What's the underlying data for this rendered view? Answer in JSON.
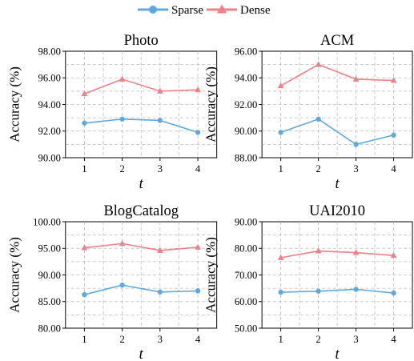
{
  "legend": {
    "items": [
      {
        "label": "Sparse",
        "color": "#5fa8df",
        "marker": "circle"
      },
      {
        "label": "Dense",
        "color": "#f07f86",
        "marker": "triangle"
      }
    ],
    "position": "top-center"
  },
  "chart_data": [
    {
      "type": "line",
      "title": "Photo",
      "xlabel": "t",
      "ylabel": "Accuracy (%)",
      "x": [
        1,
        2,
        3,
        4
      ],
      "xticks": [
        "1",
        "2",
        "3",
        "4"
      ],
      "ylim": [
        90,
        98
      ],
      "yticks": [
        "90.00",
        "92.00",
        "94.00",
        "96.00",
        "98.00"
      ],
      "grid": true,
      "series": [
        {
          "name": "Sparse",
          "values": [
            92.6,
            92.9,
            92.8,
            91.9
          ]
        },
        {
          "name": "Dense",
          "values": [
            94.8,
            95.9,
            95.0,
            95.1
          ]
        }
      ]
    },
    {
      "type": "line",
      "title": "ACM",
      "xlabel": "t",
      "ylabel": "Accuracy (%)",
      "x": [
        1,
        2,
        3,
        4
      ],
      "xticks": [
        "1",
        "2",
        "3",
        "4"
      ],
      "ylim": [
        88,
        96
      ],
      "yticks": [
        "88.00",
        "90.00",
        "92.00",
        "94.00",
        "96.00"
      ],
      "grid": true,
      "series": [
        {
          "name": "Sparse",
          "values": [
            89.9,
            90.9,
            89.0,
            89.7
          ]
        },
        {
          "name": "Dense",
          "values": [
            93.4,
            95.0,
            93.9,
            93.8
          ]
        }
      ]
    },
    {
      "type": "line",
      "title": "BlogCatalog",
      "xlabel": "t",
      "ylabel": "Accuracy (%)",
      "x": [
        1,
        2,
        3,
        4
      ],
      "xticks": [
        "1",
        "2",
        "3",
        "4"
      ],
      "ylim": [
        80,
        100
      ],
      "yticks": [
        "80.00",
        "85.00",
        "90.00",
        "95.00",
        "100.00"
      ],
      "grid": true,
      "series": [
        {
          "name": "Sparse",
          "values": [
            86.3,
            88.1,
            86.8,
            87.0
          ]
        },
        {
          "name": "Dense",
          "values": [
            95.1,
            95.9,
            94.6,
            95.2
          ]
        }
      ]
    },
    {
      "type": "line",
      "title": "UAI2010",
      "xlabel": "t",
      "ylabel": "Accuracy (%)",
      "x": [
        1,
        2,
        3,
        4
      ],
      "xticks": [
        "1",
        "2",
        "3",
        "4"
      ],
      "ylim": [
        50,
        90
      ],
      "yticks": [
        "50.00",
        "60.00",
        "70.00",
        "80.00",
        "90.00"
      ],
      "grid": true,
      "series": [
        {
          "name": "Sparse",
          "values": [
            63.5,
            63.9,
            64.6,
            63.2
          ]
        },
        {
          "name": "Dense",
          "values": [
            76.5,
            79.0,
            78.4,
            77.3
          ]
        }
      ]
    }
  ]
}
